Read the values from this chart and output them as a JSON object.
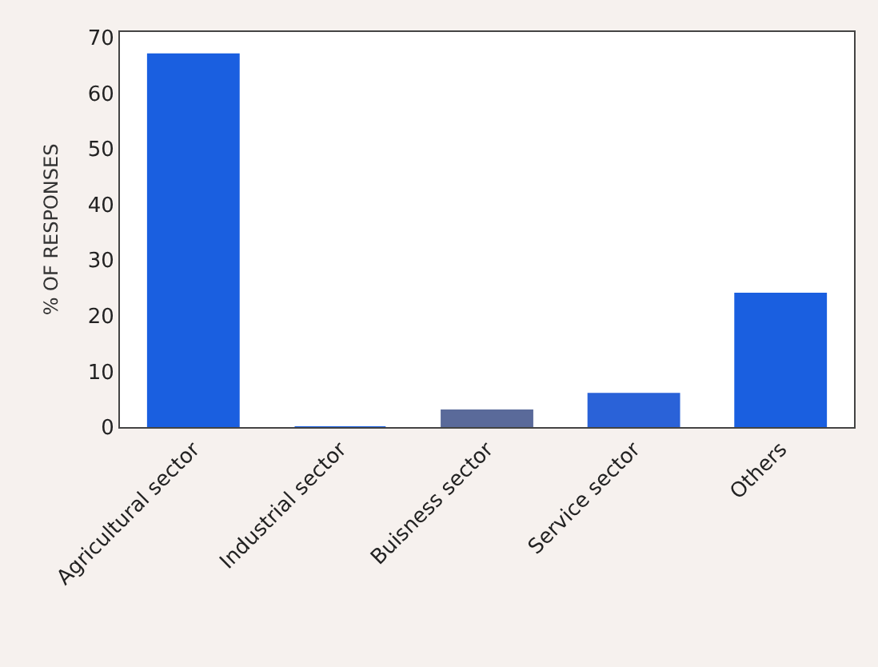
{
  "chart_data": {
    "type": "bar",
    "ylabel": "% OF RESPONSES",
    "categories": [
      "Agricultural sector",
      "Industrial sector",
      "Buisness sector",
      "Service sector",
      "Others"
    ],
    "values": [
      67,
      0,
      3,
      6,
      24
    ],
    "colors": [
      "#1a5fe0",
      "#1a5fe0",
      "#5a6a9a",
      "#2a62d8",
      "#1a5fe0"
    ],
    "ylim": [
      0,
      71
    ],
    "yticks": [
      0,
      10,
      20,
      30,
      40,
      50,
      60,
      70
    ]
  }
}
